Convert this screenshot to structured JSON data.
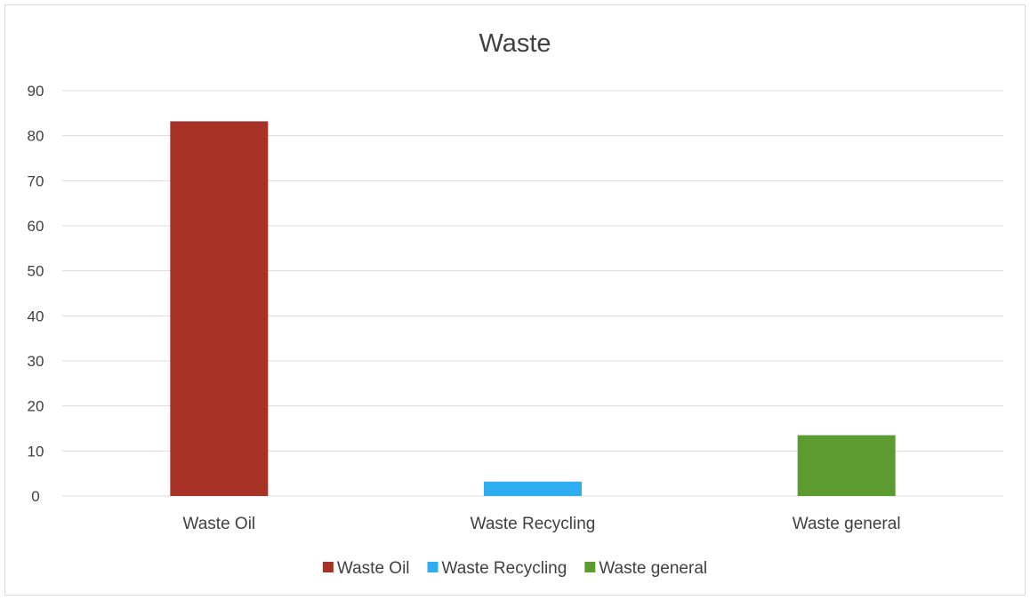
{
  "chart_data": {
    "type": "bar",
    "title": "Waste",
    "xlabel": "",
    "ylabel": "",
    "categories": [
      "Waste Oil",
      "Waste Recycling",
      "Waste general"
    ],
    "values": [
      83.2,
      3.2,
      13.5
    ],
    "colors": [
      "#a93226",
      "#2eaef0",
      "#5b9b30"
    ],
    "ylim": [
      0,
      90
    ],
    "yticks": [
      0,
      10,
      20,
      30,
      40,
      50,
      60,
      70,
      80,
      90
    ],
    "ytick_labels": [
      "0",
      "10",
      "20",
      "30",
      "40",
      "50",
      "60",
      "70",
      "80",
      "90"
    ],
    "grid": true,
    "legend": {
      "position": "bottom",
      "entries": [
        "Waste Oil",
        "Waste Recycling",
        "Waste general"
      ]
    }
  }
}
